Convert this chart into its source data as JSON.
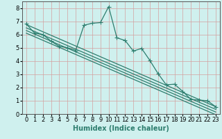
{
  "xlabel": "Humidex (Indice chaleur)",
  "bg_color": "#cff0ee",
  "grid_color": "#d4a0a0",
  "line_color": "#2d7d6e",
  "xlim": [
    -0.5,
    23.5
  ],
  "ylim": [
    0,
    8.5
  ],
  "xticks": [
    0,
    1,
    2,
    3,
    4,
    5,
    6,
    7,
    8,
    9,
    10,
    11,
    12,
    13,
    14,
    15,
    16,
    17,
    18,
    19,
    20,
    21,
    22,
    23
  ],
  "yticks": [
    0,
    1,
    2,
    3,
    4,
    5,
    6,
    7,
    8
  ],
  "jagged_x": [
    0,
    1,
    2,
    3,
    4,
    5,
    6,
    7,
    8,
    9,
    10,
    11,
    12,
    13,
    14,
    15,
    16,
    17,
    18,
    19,
    20,
    21,
    22,
    23
  ],
  "jagged_y": [
    6.8,
    6.1,
    6.0,
    5.5,
    5.1,
    5.0,
    4.8,
    6.7,
    6.85,
    6.9,
    8.1,
    5.75,
    5.55,
    4.75,
    4.95,
    4.05,
    3.05,
    2.2,
    2.25,
    1.7,
    1.1,
    1.05,
    1.0,
    0.55
  ],
  "straight_lines": [
    {
      "x0": 0,
      "y0": 6.75,
      "x1": 23,
      "y1": 0.55
    },
    {
      "x0": 0,
      "y0": 6.5,
      "x1": 23,
      "y1": 0.35
    },
    {
      "x0": 0,
      "y0": 6.3,
      "x1": 23,
      "y1": 0.15
    },
    {
      "x0": 0,
      "y0": 6.1,
      "x1": 23,
      "y1": -0.05
    }
  ],
  "linewidth": 0.9,
  "marker": "+",
  "marker_size": 4,
  "xlabel_fontsize": 7,
  "tick_fontsize": 6
}
